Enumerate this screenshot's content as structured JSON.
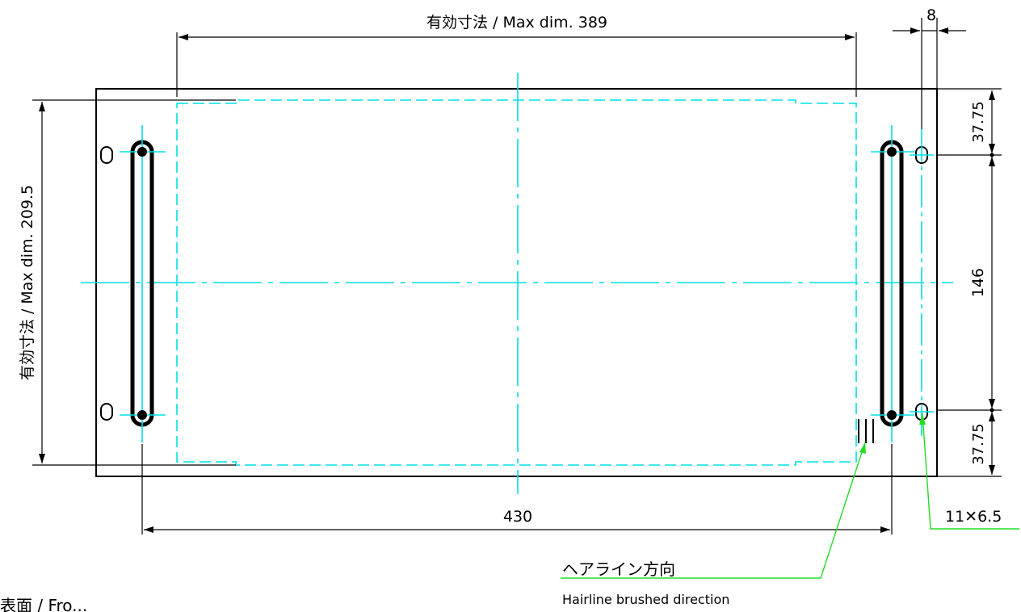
{
  "dims": {
    "width_label": "有効寸法 / Max dim.  389",
    "height_label": "有効寸法 / Max dim.  209.5",
    "bottom_label": "430",
    "top_small_label": "8",
    "right_top_label": "37.75",
    "right_mid_label": "146",
    "right_bot_label": "37.75",
    "slot_label": "11✕6.5"
  },
  "notes": {
    "hairline_jp": "ヘアライン方向",
    "hairline_en": "Hairline brushed direction",
    "surface_label": "表面 / Fro..."
  },
  "colors": {
    "centerline": "#00e0e6",
    "leader": "#22dd22",
    "outline": "#000000"
  }
}
